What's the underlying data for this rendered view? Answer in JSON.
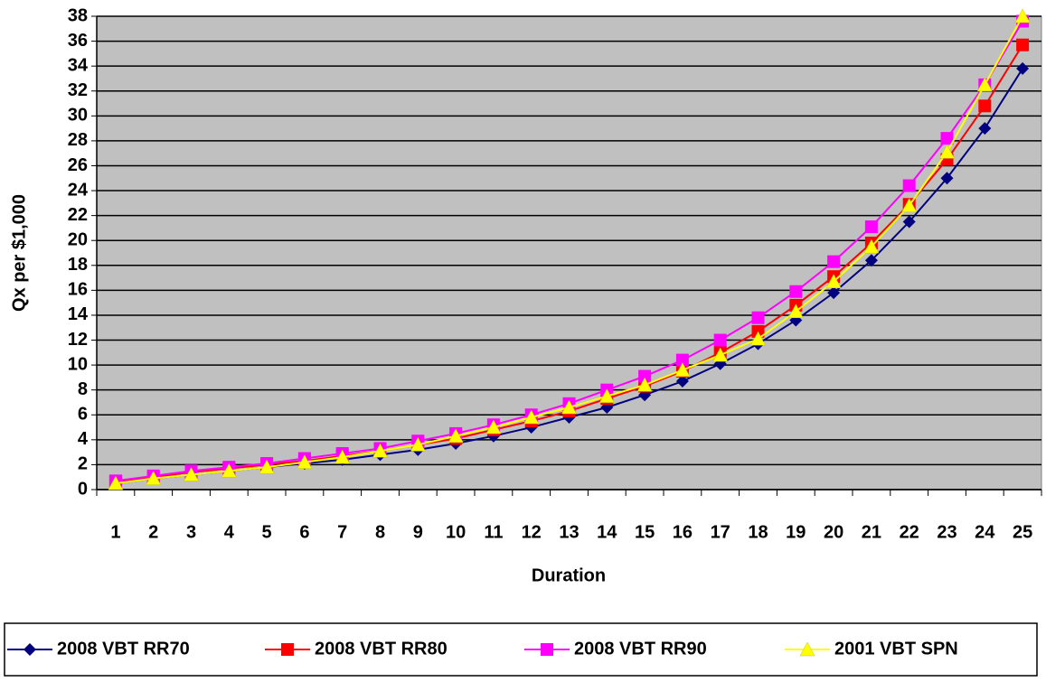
{
  "chart_data": {
    "type": "line",
    "x_label": "Duration",
    "y_label": "Qx per $1,000",
    "categories": [
      "1",
      "2",
      "3",
      "4",
      "5",
      "6",
      "7",
      "8",
      "9",
      "10",
      "11",
      "12",
      "13",
      "14",
      "15",
      "16",
      "17",
      "18",
      "19",
      "20",
      "21",
      "22",
      "23",
      "24",
      "25"
    ],
    "series": [
      {
        "name": "2008 VBT RR70",
        "color": "#000080",
        "marker": "diamond",
        "values": [
          0.5,
          0.9,
          1.2,
          1.5,
          1.8,
          2.1,
          2.4,
          2.8,
          3.2,
          3.7,
          4.3,
          5.0,
          5.8,
          6.6,
          7.6,
          8.7,
          10.1,
          11.7,
          13.6,
          15.8,
          18.4,
          21.5,
          25.0,
          29.0,
          33.8
        ]
      },
      {
        "name": "2008 VBT RR80",
        "color": "#ff0000",
        "marker": "square",
        "values": [
          0.6,
          1.0,
          1.4,
          1.7,
          2.0,
          2.3,
          2.7,
          3.1,
          3.6,
          4.1,
          4.8,
          5.5,
          6.3,
          7.3,
          8.3,
          9.5,
          11.0,
          12.7,
          14.8,
          17.1,
          19.8,
          22.9,
          26.5,
          30.8,
          35.7
        ]
      },
      {
        "name": "2008 VBT RR90",
        "color": "#ff00ff",
        "marker": "square",
        "values": [
          0.7,
          1.1,
          1.5,
          1.8,
          2.1,
          2.5,
          2.9,
          3.3,
          3.9,
          4.5,
          5.2,
          6.0,
          6.9,
          8.0,
          9.1,
          10.4,
          12.0,
          13.8,
          15.9,
          18.3,
          21.1,
          24.4,
          28.2,
          32.5,
          37.6
        ]
      },
      {
        "name": "2001 VBT SPN",
        "color": "#ffff00",
        "marker": "triangle",
        "values": [
          0.5,
          0.9,
          1.2,
          1.5,
          1.8,
          2.2,
          2.6,
          3.1,
          3.6,
          4.3,
          5.0,
          5.8,
          6.6,
          7.5,
          8.4,
          9.6,
          10.8,
          12.1,
          14.3,
          16.7,
          19.5,
          22.8,
          27.1,
          32.5,
          38.0
        ]
      }
    ],
    "ylim": [
      0,
      38
    ],
    "yticks": [
      0,
      2,
      4,
      6,
      8,
      10,
      12,
      14,
      16,
      18,
      20,
      22,
      24,
      26,
      28,
      30,
      32,
      34,
      36,
      38
    ],
    "grid": true,
    "plot_background": "#c0c0c0",
    "legend": "bottom"
  }
}
